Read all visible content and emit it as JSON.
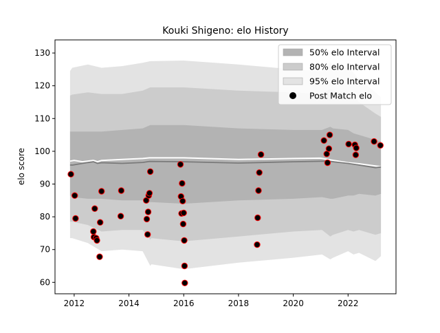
{
  "chart_data": {
    "type": "scatter",
    "title": "Kouki Shigeno: elo History",
    "xlabel": "",
    "ylabel": "elo score",
    "xlim": [
      2011.3,
      2023.75
    ],
    "ylim": [
      56.5,
      134
    ],
    "x_ticks": [
      2012,
      2014,
      2016,
      2018,
      2020,
      2022
    ],
    "y_ticks": [
      60,
      70,
      80,
      90,
      100,
      110,
      120,
      130
    ],
    "grid": false,
    "legend_position": "top-right",
    "legend": [
      {
        "label": "50% elo Interval",
        "kind": "band",
        "color": "#b3b3b3"
      },
      {
        "label": "80% elo Interval",
        "kind": "band",
        "color": "#cccccc"
      },
      {
        "label": "95% elo Interval",
        "kind": "band",
        "color": "#e3e3e3"
      },
      {
        "label": "Post Match elo",
        "kind": "marker",
        "color": "#000000"
      }
    ],
    "bands": {
      "x": [
        2011.85,
        2011.93,
        2012.5,
        2013.0,
        2013.75,
        2014.5,
        2014.78,
        2014.82,
        2016.0,
        2018.0,
        2020.0,
        2021.05,
        2021.35,
        2021.45,
        2022.0,
        2022.2,
        2022.4,
        2023.0,
        2023.2
      ],
      "band95": {
        "upper": [
          124.5,
          125.5,
          126.5,
          125.5,
          126.0,
          127.0,
          127.5,
          127.5,
          127.7,
          126.5,
          125.0,
          124.5,
          127.2,
          126.5,
          125.5,
          124.0,
          122.0,
          118.0,
          116.5
        ],
        "lower": [
          73.5,
          73.5,
          72.0,
          69.5,
          70.0,
          69.5,
          65.0,
          65.5,
          64.0,
          66.0,
          67.5,
          68.5,
          67.0,
          67.5,
          69.5,
          68.5,
          69.0,
          66.5,
          68.0
        ]
      },
      "band80": {
        "upper": [
          117.0,
          117.3,
          118.0,
          117.5,
          117.5,
          118.5,
          119.5,
          119.5,
          119.5,
          118.5,
          118.0,
          117.5,
          119.0,
          118.5,
          117.5,
          116.5,
          115.0,
          111.5,
          110.5
        ],
        "lower": [
          78.5,
          78.5,
          77.5,
          75.5,
          76.0,
          76.0,
          73.0,
          73.5,
          72.5,
          74.0,
          75.5,
          76.0,
          74.0,
          74.5,
          76.0,
          75.5,
          76.0,
          74.5,
          75.0
        ]
      },
      "band50": {
        "upper": [
          106.0,
          106.0,
          106.0,
          106.0,
          106.5,
          107.0,
          108.0,
          108.0,
          108.0,
          107.0,
          106.5,
          106.5,
          107.5,
          107.0,
          106.5,
          105.5,
          105.0,
          103.5,
          103.0
        ],
        "lower": [
          86.5,
          86.0,
          85.5,
          85.5,
          85.0,
          85.0,
          84.5,
          84.5,
          84.0,
          85.0,
          85.5,
          86.0,
          85.5,
          85.5,
          86.5,
          86.5,
          87.0,
          86.5,
          87.0
        ]
      }
    },
    "mean_line": {
      "x": [
        2011.85,
        2011.95,
        2012.3,
        2012.7,
        2012.85,
        2013.0,
        2013.75,
        2014.5,
        2014.75,
        2016.0,
        2018.0,
        2020.0,
        2021.2,
        2021.45,
        2022.0,
        2022.4,
        2023.0,
        2023.2
      ],
      "y": [
        95.8,
        95.8,
        96.3,
        96.8,
        96.3,
        96.5,
        96.3,
        96.6,
        96.9,
        96.8,
        96.4,
        96.8,
        97.0,
        96.8,
        96.3,
        95.8,
        95.0,
        95.2
      ]
    },
    "upper_line": {
      "x": [
        2011.85,
        2012.0,
        2012.3,
        2012.7,
        2012.85,
        2013.0,
        2013.75,
        2014.5,
        2014.75,
        2016.0,
        2018.0,
        2020.0,
        2021.0,
        2021.4,
        2022.0,
        2022.4,
        2023.0,
        2023.2
      ],
      "y": [
        97.0,
        97.2,
        96.8,
        97.2,
        96.8,
        97.2,
        97.5,
        97.8,
        98.0,
        98.0,
        97.5,
        97.8,
        97.9,
        97.3,
        96.5,
        96.2,
        95.5,
        95.3
      ]
    },
    "points": [
      {
        "x": 2011.88,
        "y": 93.0
      },
      {
        "x": 2012.02,
        "y": 86.5
      },
      {
        "x": 2012.05,
        "y": 79.5
      },
      {
        "x": 2012.7,
        "y": 75.5
      },
      {
        "x": 2012.72,
        "y": 73.8
      },
      {
        "x": 2012.75,
        "y": 82.5
      },
      {
        "x": 2012.8,
        "y": 73.5
      },
      {
        "x": 2012.83,
        "y": 72.8
      },
      {
        "x": 2012.93,
        "y": 67.8
      },
      {
        "x": 2012.95,
        "y": 78.3
      },
      {
        "x": 2013.0,
        "y": 87.8
      },
      {
        "x": 2013.7,
        "y": 80.2
      },
      {
        "x": 2013.72,
        "y": 88.0
      },
      {
        "x": 2014.63,
        "y": 85.0
      },
      {
        "x": 2014.65,
        "y": 79.3
      },
      {
        "x": 2014.68,
        "y": 74.6
      },
      {
        "x": 2014.7,
        "y": 81.5
      },
      {
        "x": 2014.72,
        "y": 86.5
      },
      {
        "x": 2014.75,
        "y": 87.2
      },
      {
        "x": 2014.78,
        "y": 93.8
      },
      {
        "x": 2015.88,
        "y": 96.0
      },
      {
        "x": 2015.9,
        "y": 86.2
      },
      {
        "x": 2015.92,
        "y": 81.0
      },
      {
        "x": 2015.94,
        "y": 90.2
      },
      {
        "x": 2015.96,
        "y": 84.8
      },
      {
        "x": 2015.98,
        "y": 77.8
      },
      {
        "x": 2016.0,
        "y": 81.2
      },
      {
        "x": 2016.02,
        "y": 72.8
      },
      {
        "x": 2016.03,
        "y": 65.0
      },
      {
        "x": 2016.04,
        "y": 59.8
      },
      {
        "x": 2018.68,
        "y": 71.5
      },
      {
        "x": 2018.7,
        "y": 79.7
      },
      {
        "x": 2018.73,
        "y": 88.0
      },
      {
        "x": 2018.76,
        "y": 93.5
      },
      {
        "x": 2018.82,
        "y": 99.0
      },
      {
        "x": 2021.12,
        "y": 103.3
      },
      {
        "x": 2021.22,
        "y": 99.2
      },
      {
        "x": 2021.25,
        "y": 96.5
      },
      {
        "x": 2021.3,
        "y": 100.8
      },
      {
        "x": 2021.33,
        "y": 105.0
      },
      {
        "x": 2022.02,
        "y": 102.2
      },
      {
        "x": 2022.25,
        "y": 102.0
      },
      {
        "x": 2022.28,
        "y": 98.9
      },
      {
        "x": 2022.3,
        "y": 101.0
      },
      {
        "x": 2022.95,
        "y": 103.0
      },
      {
        "x": 2023.18,
        "y": 101.8
      }
    ]
  }
}
